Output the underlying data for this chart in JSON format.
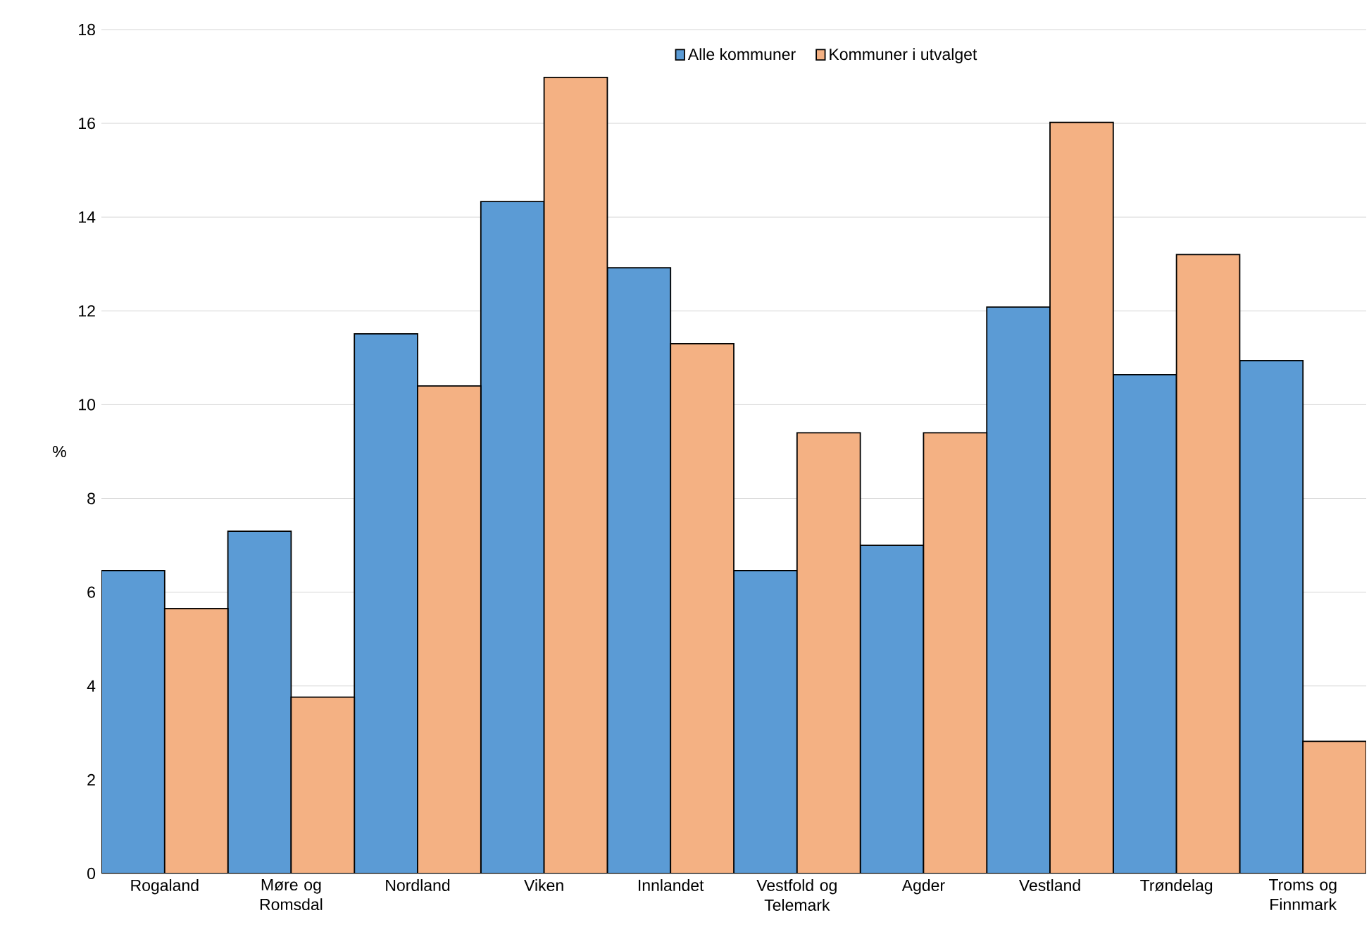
{
  "chart_data": {
    "type": "bar",
    "ylabel": "%",
    "categories": [
      "Rogaland",
      "Møre og Romsdal",
      "Nordland",
      "Viken",
      "Innlandet",
      "Vestfold og Telemark",
      "Agder",
      "Vestland",
      "Trøndelag",
      "Troms og Finnmark"
    ],
    "series": [
      {
        "name": "Alle kommuner",
        "color": "#5b9bd5",
        "values": [
          6.46,
          7.3,
          11.51,
          14.33,
          12.92,
          6.46,
          7.0,
          12.08,
          10.64,
          10.94
        ]
      },
      {
        "name": "Kommuner i utvalget",
        "color": "#f4b183",
        "values": [
          5.65,
          3.76,
          10.4,
          16.98,
          11.3,
          9.4,
          9.4,
          16.02,
          13.2,
          2.82
        ]
      }
    ],
    "ylim": [
      0,
      18
    ],
    "yticks": [
      0,
      2,
      4,
      6,
      8,
      10,
      12,
      14,
      16,
      18
    ],
    "grid": "y",
    "legend": "top"
  }
}
